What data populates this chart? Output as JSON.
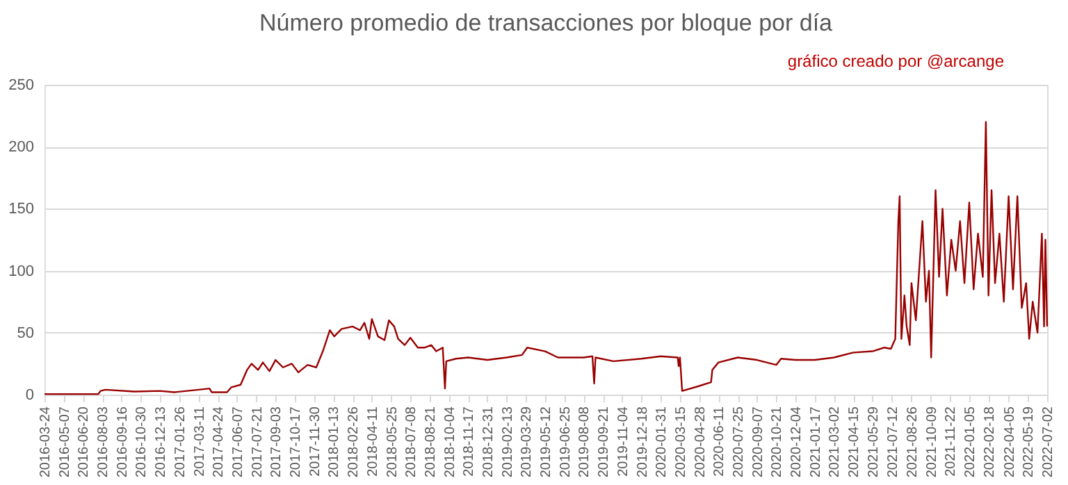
{
  "chart_data": {
    "type": "line",
    "title": "Número promedio de transacciones por bloque por día",
    "annotations": [
      "gráfico creado por @arcange"
    ],
    "x": [
      "2016-03-24",
      "2016-07-25",
      "2016-07-30",
      "2016-08-10",
      "2016-10-15",
      "2016-12-13",
      "2017-01-15",
      "2017-03-11",
      "2017-04-05",
      "2017-04-10",
      "2017-05-15",
      "2017-05-25",
      "2017-06-15",
      "2017-06-30",
      "2017-07-10",
      "2017-07-25",
      "2017-08-05",
      "2017-08-20",
      "2017-09-03",
      "2017-09-20",
      "2017-10-10",
      "2017-10-25",
      "2017-11-15",
      "2017-12-05",
      "2017-12-20",
      "2018-01-05",
      "2018-01-15",
      "2018-02-01",
      "2018-02-26",
      "2018-03-15",
      "2018-03-25",
      "2018-04-05",
      "2018-04-11",
      "2018-04-25",
      "2018-05-10",
      "2018-05-20",
      "2018-06-01",
      "2018-06-10",
      "2018-06-25",
      "2018-07-08",
      "2018-07-25",
      "2018-08-10",
      "2018-08-25",
      "2018-09-05",
      "2018-09-20",
      "2018-09-25",
      "2018-09-28",
      "2018-10-20",
      "2018-11-17",
      "2018-12-31",
      "2019-02-13",
      "2019-03-20",
      "2019-04-01",
      "2019-05-12",
      "2019-06-10",
      "2019-08-08",
      "2019-08-28",
      "2019-09-01",
      "2019-09-04",
      "2019-10-15",
      "2019-12-18",
      "2020-01-31",
      "2020-03-10",
      "2020-03-12",
      "2020-03-15",
      "2020-03-20",
      "2020-04-28",
      "2020-05-25",
      "2020-05-28",
      "2020-06-11",
      "2020-07-25",
      "2020-09-07",
      "2020-10-21",
      "2020-11-01",
      "2020-12-04",
      "2021-01-17",
      "2021-03-02",
      "2021-04-15",
      "2021-05-29",
      "2021-06-25",
      "2021-07-10",
      "2021-07-20",
      "2021-07-24",
      "2021-07-27",
      "2021-07-30",
      "2021-08-03",
      "2021-08-10",
      "2021-08-15",
      "2021-08-22",
      "2021-08-26",
      "2021-09-05",
      "2021-09-20",
      "2021-09-28",
      "2021-10-05",
      "2021-10-10",
      "2021-10-20",
      "2021-10-28",
      "2021-11-05",
      "2021-11-15",
      "2021-11-25",
      "2021-12-05",
      "2021-12-15",
      "2021-12-25",
      "2022-01-05",
      "2022-01-15",
      "2022-01-25",
      "2022-02-05",
      "2022-02-12",
      "2022-02-18",
      "2022-02-25",
      "2022-03-05",
      "2022-03-15",
      "2022-03-25",
      "2022-04-05",
      "2022-04-15",
      "2022-04-25",
      "2022-05-05",
      "2022-05-15",
      "2022-05-22",
      "2022-05-30",
      "2022-06-10",
      "2022-06-20",
      "2022-06-25",
      "2022-06-28",
      "2022-07-02"
    ],
    "series": [
      {
        "color": "#990000",
        "values": [
          0.5,
          0.5,
          3,
          4,
          2.5,
          3,
          2,
          4,
          5,
          2,
          2,
          6,
          8,
          20,
          25,
          20,
          26,
          19,
          28,
          22,
          25,
          18,
          24,
          22,
          35,
          52,
          47,
          53,
          55,
          52,
          58,
          45,
          61,
          47,
          44,
          60,
          55,
          45,
          40,
          46,
          38,
          38,
          40,
          35,
          38,
          5,
          27,
          29,
          30,
          28,
          30,
          32,
          38,
          35,
          30,
          30,
          31,
          9,
          30,
          27,
          29,
          31,
          30,
          23,
          30,
          3,
          7,
          10,
          20,
          26,
          30,
          28,
          24,
          29,
          28,
          28,
          30,
          34,
          35,
          38,
          37,
          45,
          100,
          140,
          160,
          45,
          80,
          55,
          40,
          90,
          60,
          140,
          75,
          100,
          30,
          165,
          95,
          150,
          80,
          125,
          100,
          140,
          90,
          155,
          85,
          130,
          95,
          220,
          80,
          165,
          90,
          130,
          75,
          160,
          85,
          160,
          70,
          90,
          45,
          75,
          50,
          130,
          55,
          125,
          55
        ]
      }
    ],
    "xlim": [
      "2016-03-24",
      "2022-07-02"
    ],
    "xticks": [
      "2016-03-24",
      "2016-05-07",
      "2016-06-20",
      "2016-08-03",
      "2016-09-16",
      "2016-10-30",
      "2016-12-13",
      "2017-01-26",
      "2017-03-11",
      "2017-04-24",
      "2017-06-07",
      "2017-07-21",
      "2017-09-03",
      "2017-10-17",
      "2017-11-30",
      "2018-01-13",
      "2018-02-26",
      "2018-04-11",
      "2018-05-25",
      "2018-07-08",
      "2018-08-21",
      "2018-10-04",
      "2018-11-17",
      "2018-12-31",
      "2019-02-13",
      "2019-03-29",
      "2019-05-12",
      "2019-06-25",
      "2019-08-08",
      "2019-09-21",
      "2019-11-04",
      "2019-12-18",
      "2020-01-31",
      "2020-03-15",
      "2020-04-28",
      "2020-06-11",
      "2020-07-25",
      "2020-09-07",
      "2020-10-21",
      "2020-12-04",
      "2021-01-17",
      "2021-03-02",
      "2021-04-15",
      "2021-05-29",
      "2021-07-12",
      "2021-08-26",
      "2021-10-09",
      "2021-11-22",
      "2022-01-05",
      "2022-02-18",
      "2022-04-05",
      "2022-05-19",
      "2022-07-02"
    ],
    "ylim": [
      0,
      250
    ],
    "yticks": [
      0,
      50,
      100,
      150,
      200,
      250
    ],
    "grid": "y",
    "legend": false,
    "marker": "none",
    "line_style": "solid"
  }
}
